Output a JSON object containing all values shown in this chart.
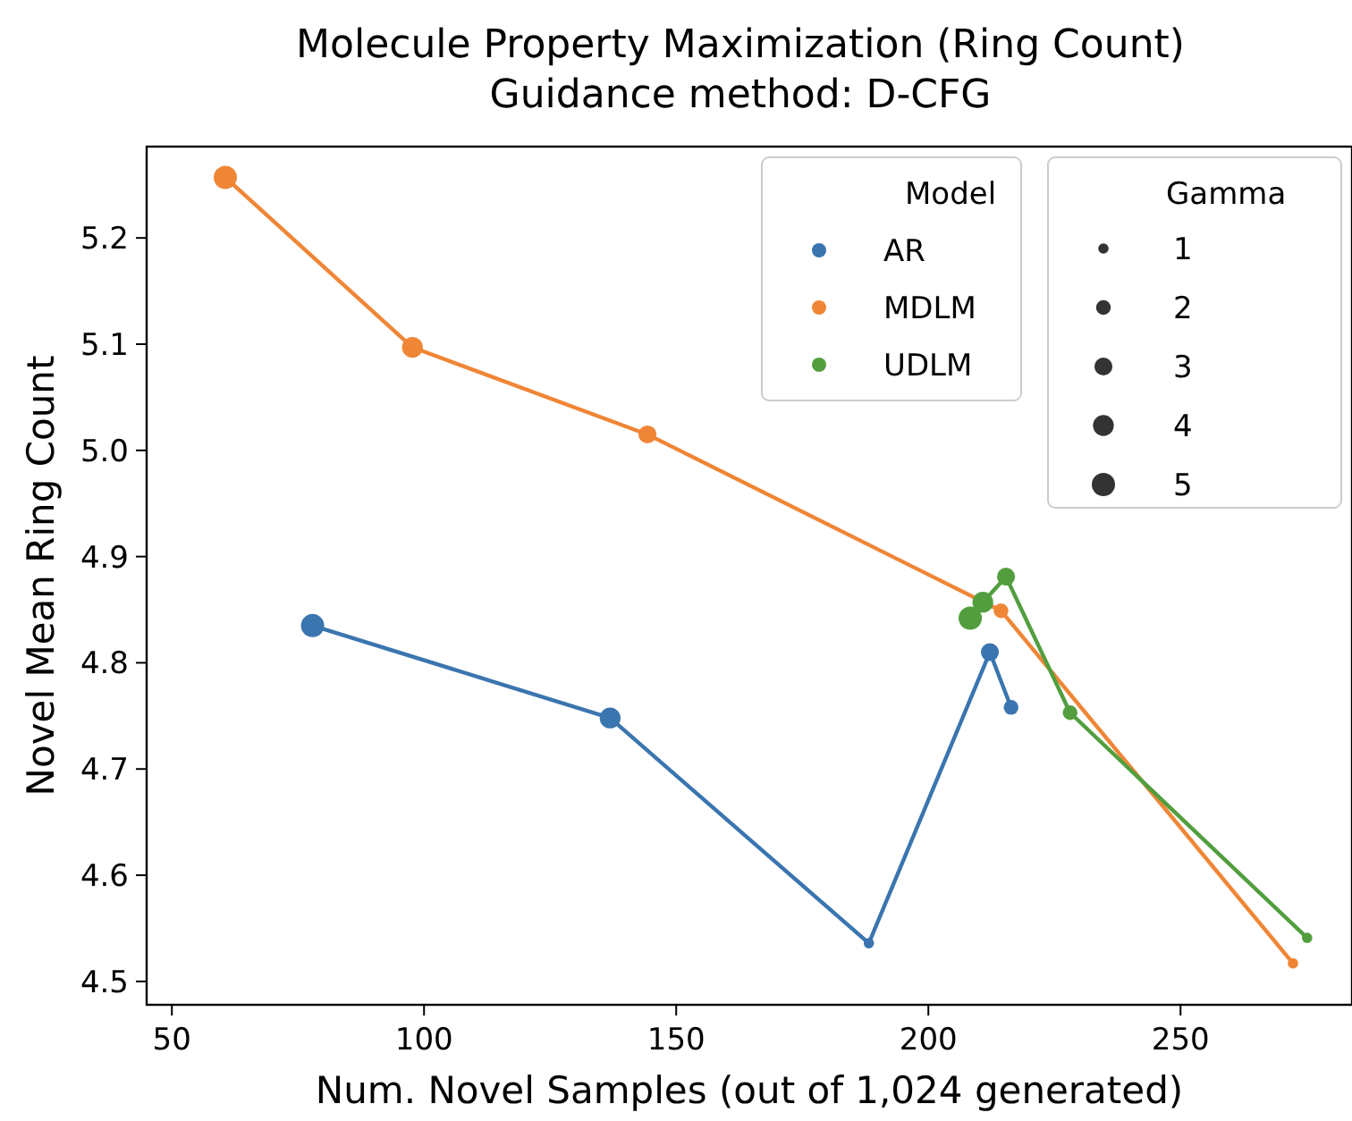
{
  "chart_data": {
    "type": "bubble",
    "title": "Molecule Property Maximization (Ring Count)",
    "subtitle": "Guidance method: D-CFG",
    "xlabel": "Num. Novel Samples (out of 1,024 generated)",
    "ylabel": "Novel Mean Ring Count",
    "legend_title": "Model",
    "annotations": [
      "Gamma"
    ],
    "size_legend": [
      1,
      2,
      3,
      4,
      5
    ],
    "legend": "top right",
    "marker": "circle",
    "xlim": [
      45,
      284
    ],
    "xticks": [
      50,
      100,
      150,
      200,
      250
    ],
    "ylim": [
      4.478,
      5.286
    ],
    "yticks": [
      {
        "value": 4.5,
        "label": "4.5"
      },
      {
        "value": 4.6,
        "label": "4.6"
      },
      {
        "value": 4.7,
        "label": "4.7"
      },
      {
        "value": 4.8,
        "label": "4.8"
      },
      {
        "value": 4.9,
        "label": "4.9"
      },
      {
        "value": 5.0,
        "label": "5.0"
      },
      {
        "value": 5.1,
        "label": "5.1"
      },
      {
        "value": 5.2,
        "label": "5.2"
      }
    ],
    "series": [
      {
        "type": "line",
        "marker": "none",
        "color": "#3a75af",
        "x": [
          77.9,
          136.9,
          188.2,
          212.2,
          216.4
        ],
        "values": [
          4.835,
          4.748,
          4.536,
          4.81,
          4.758
        ]
      },
      {
        "type": "line",
        "marker": "none",
        "color": "#ef8636",
        "x": [
          60.6,
          97.7,
          144.3,
          214.4,
          272.3
        ],
        "values": [
          5.257,
          5.097,
          5.015,
          4.849,
          4.517
        ]
      },
      {
        "type": "line",
        "marker": "none",
        "color": "#529e3f",
        "x": [
          208.3,
          210.8,
          215.4,
          228.1,
          275.1
        ],
        "values": [
          4.842,
          4.857,
          4.881,
          4.753,
          4.541
        ]
      },
      {
        "name": "AR",
        "color": "#3a75af",
        "x": [
          77.9,
          136.9,
          188.2,
          212.2,
          216.4
        ],
        "values": [
          4.835,
          4.748,
          4.536,
          4.81,
          4.758
        ],
        "sizes": [
          5,
          4,
          1,
          3,
          2
        ]
      },
      {
        "name": "MDLM",
        "color": "#ef8636",
        "x": [
          60.6,
          97.7,
          144.3,
          214.4,
          272.3
        ],
        "values": [
          5.257,
          5.097,
          5.015,
          4.849,
          4.517
        ],
        "sizes": [
          5,
          4,
          3,
          2,
          1
        ]
      },
      {
        "name": "UDLM",
        "color": "#529e3f",
        "x": [
          208.3,
          210.8,
          215.4,
          228.1,
          275.1
        ],
        "values": [
          4.842,
          4.857,
          4.881,
          4.753,
          4.541
        ],
        "sizes": [
          5,
          4,
          3,
          2,
          1
        ]
      }
    ]
  }
}
